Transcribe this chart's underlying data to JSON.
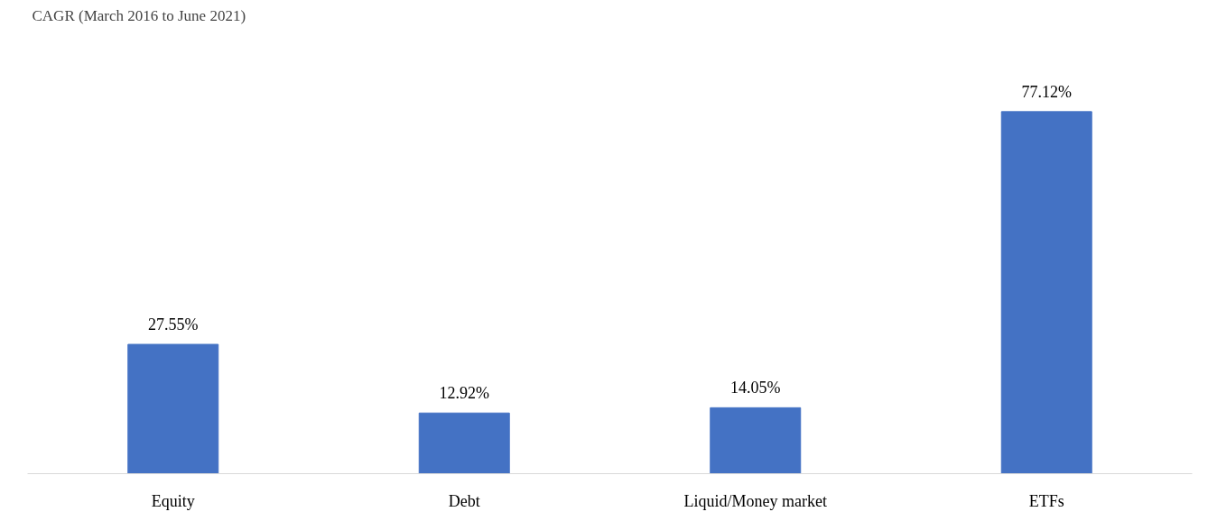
{
  "chart_data": {
    "type": "bar",
    "title": "CAGR (March 2016 to June 2021)",
    "categories": [
      "Equity",
      "Debt",
      "Liquid/Money market",
      "ETFs"
    ],
    "values": [
      27.55,
      12.92,
      14.05,
      77.12
    ],
    "color": "#4472c4",
    "data_labels": true,
    "value_labels": [
      "27.55%",
      "12.92%",
      "14.05%",
      "77.12%"
    ],
    "grid": false
  }
}
